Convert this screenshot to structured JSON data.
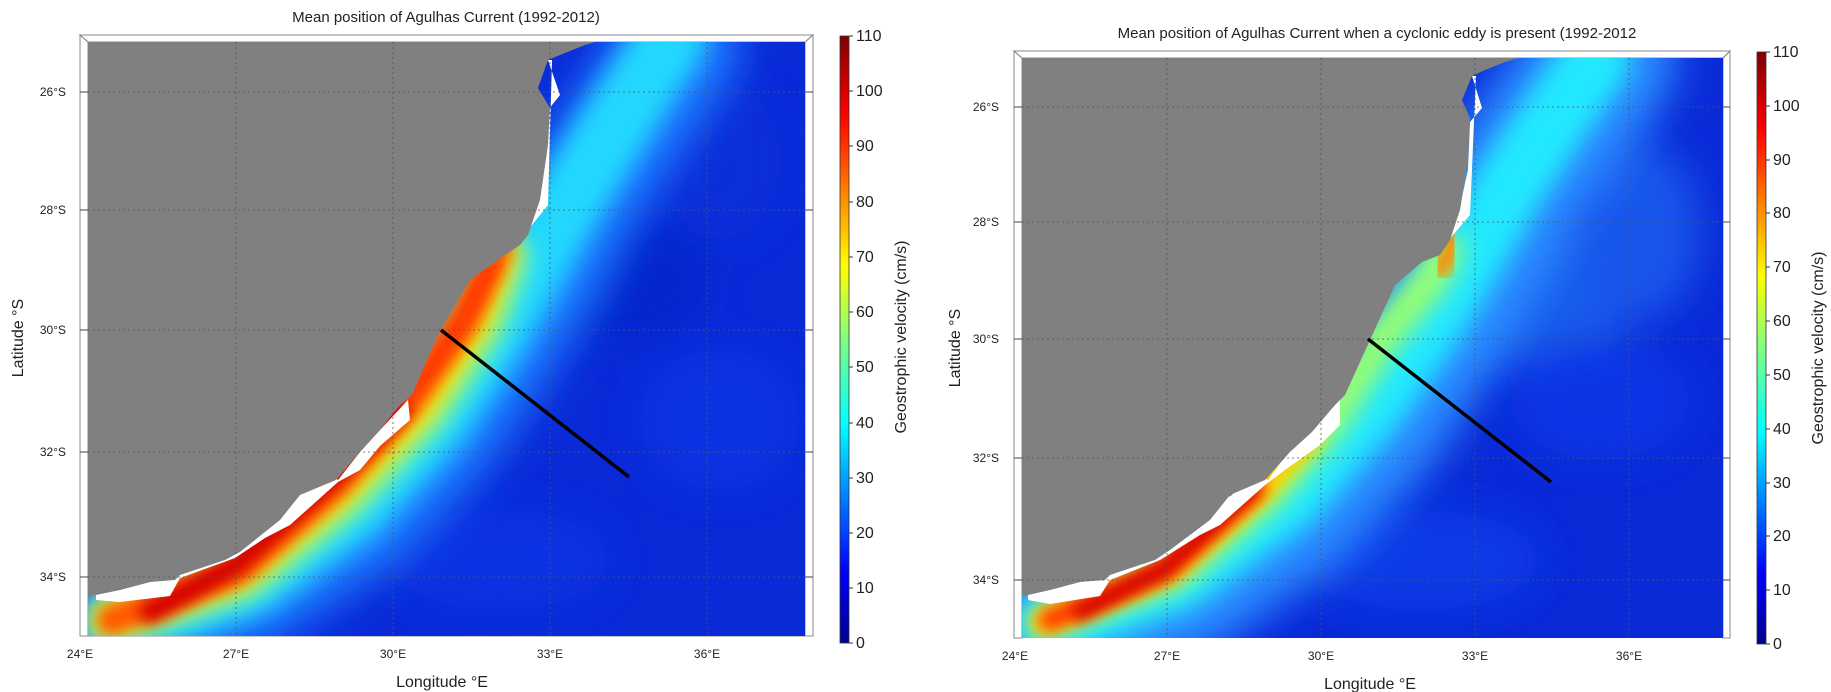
{
  "panels": [
    {
      "title": "Mean position of Agulhas Current (1992-2012)",
      "xlabel": "Longitude °E",
      "ylabel": "Latitude °S",
      "xticks": [
        "24°E",
        "27°E",
        "30°E",
        "33°E",
        "36°E"
      ],
      "yticks": [
        "26°S",
        "28°S",
        "30°S",
        "32°S",
        "34°S"
      ],
      "colorbar_label": "Geostrophic velocity (cm/s)",
      "colorbar_ticks": [
        "0",
        "10",
        "20",
        "30",
        "40",
        "50",
        "60",
        "70",
        "80",
        "90",
        "100",
        "110"
      ],
      "variant": "mean"
    },
    {
      "title": "Mean position of Agulhas Current when a cyclonic eddy is present (1992-2012",
      "xlabel": "Longitude °E",
      "ylabel": "Latitude °S",
      "xticks": [
        "24°E",
        "27°E",
        "30°E",
        "33°E",
        "36°E"
      ],
      "yticks": [
        "26°S",
        "28°S",
        "30°S",
        "32°S",
        "34°S"
      ],
      "colorbar_label": "Geostrophic velocity (cm/s)",
      "colorbar_ticks": [
        "0",
        "10",
        "20",
        "30",
        "40",
        "50",
        "60",
        "70",
        "80",
        "90",
        "100",
        "110"
      ],
      "variant": "eddy"
    }
  ],
  "colors": {
    "land": "#808080",
    "ocean_background": "#0a28d6",
    "transect": "#000000"
  }
}
